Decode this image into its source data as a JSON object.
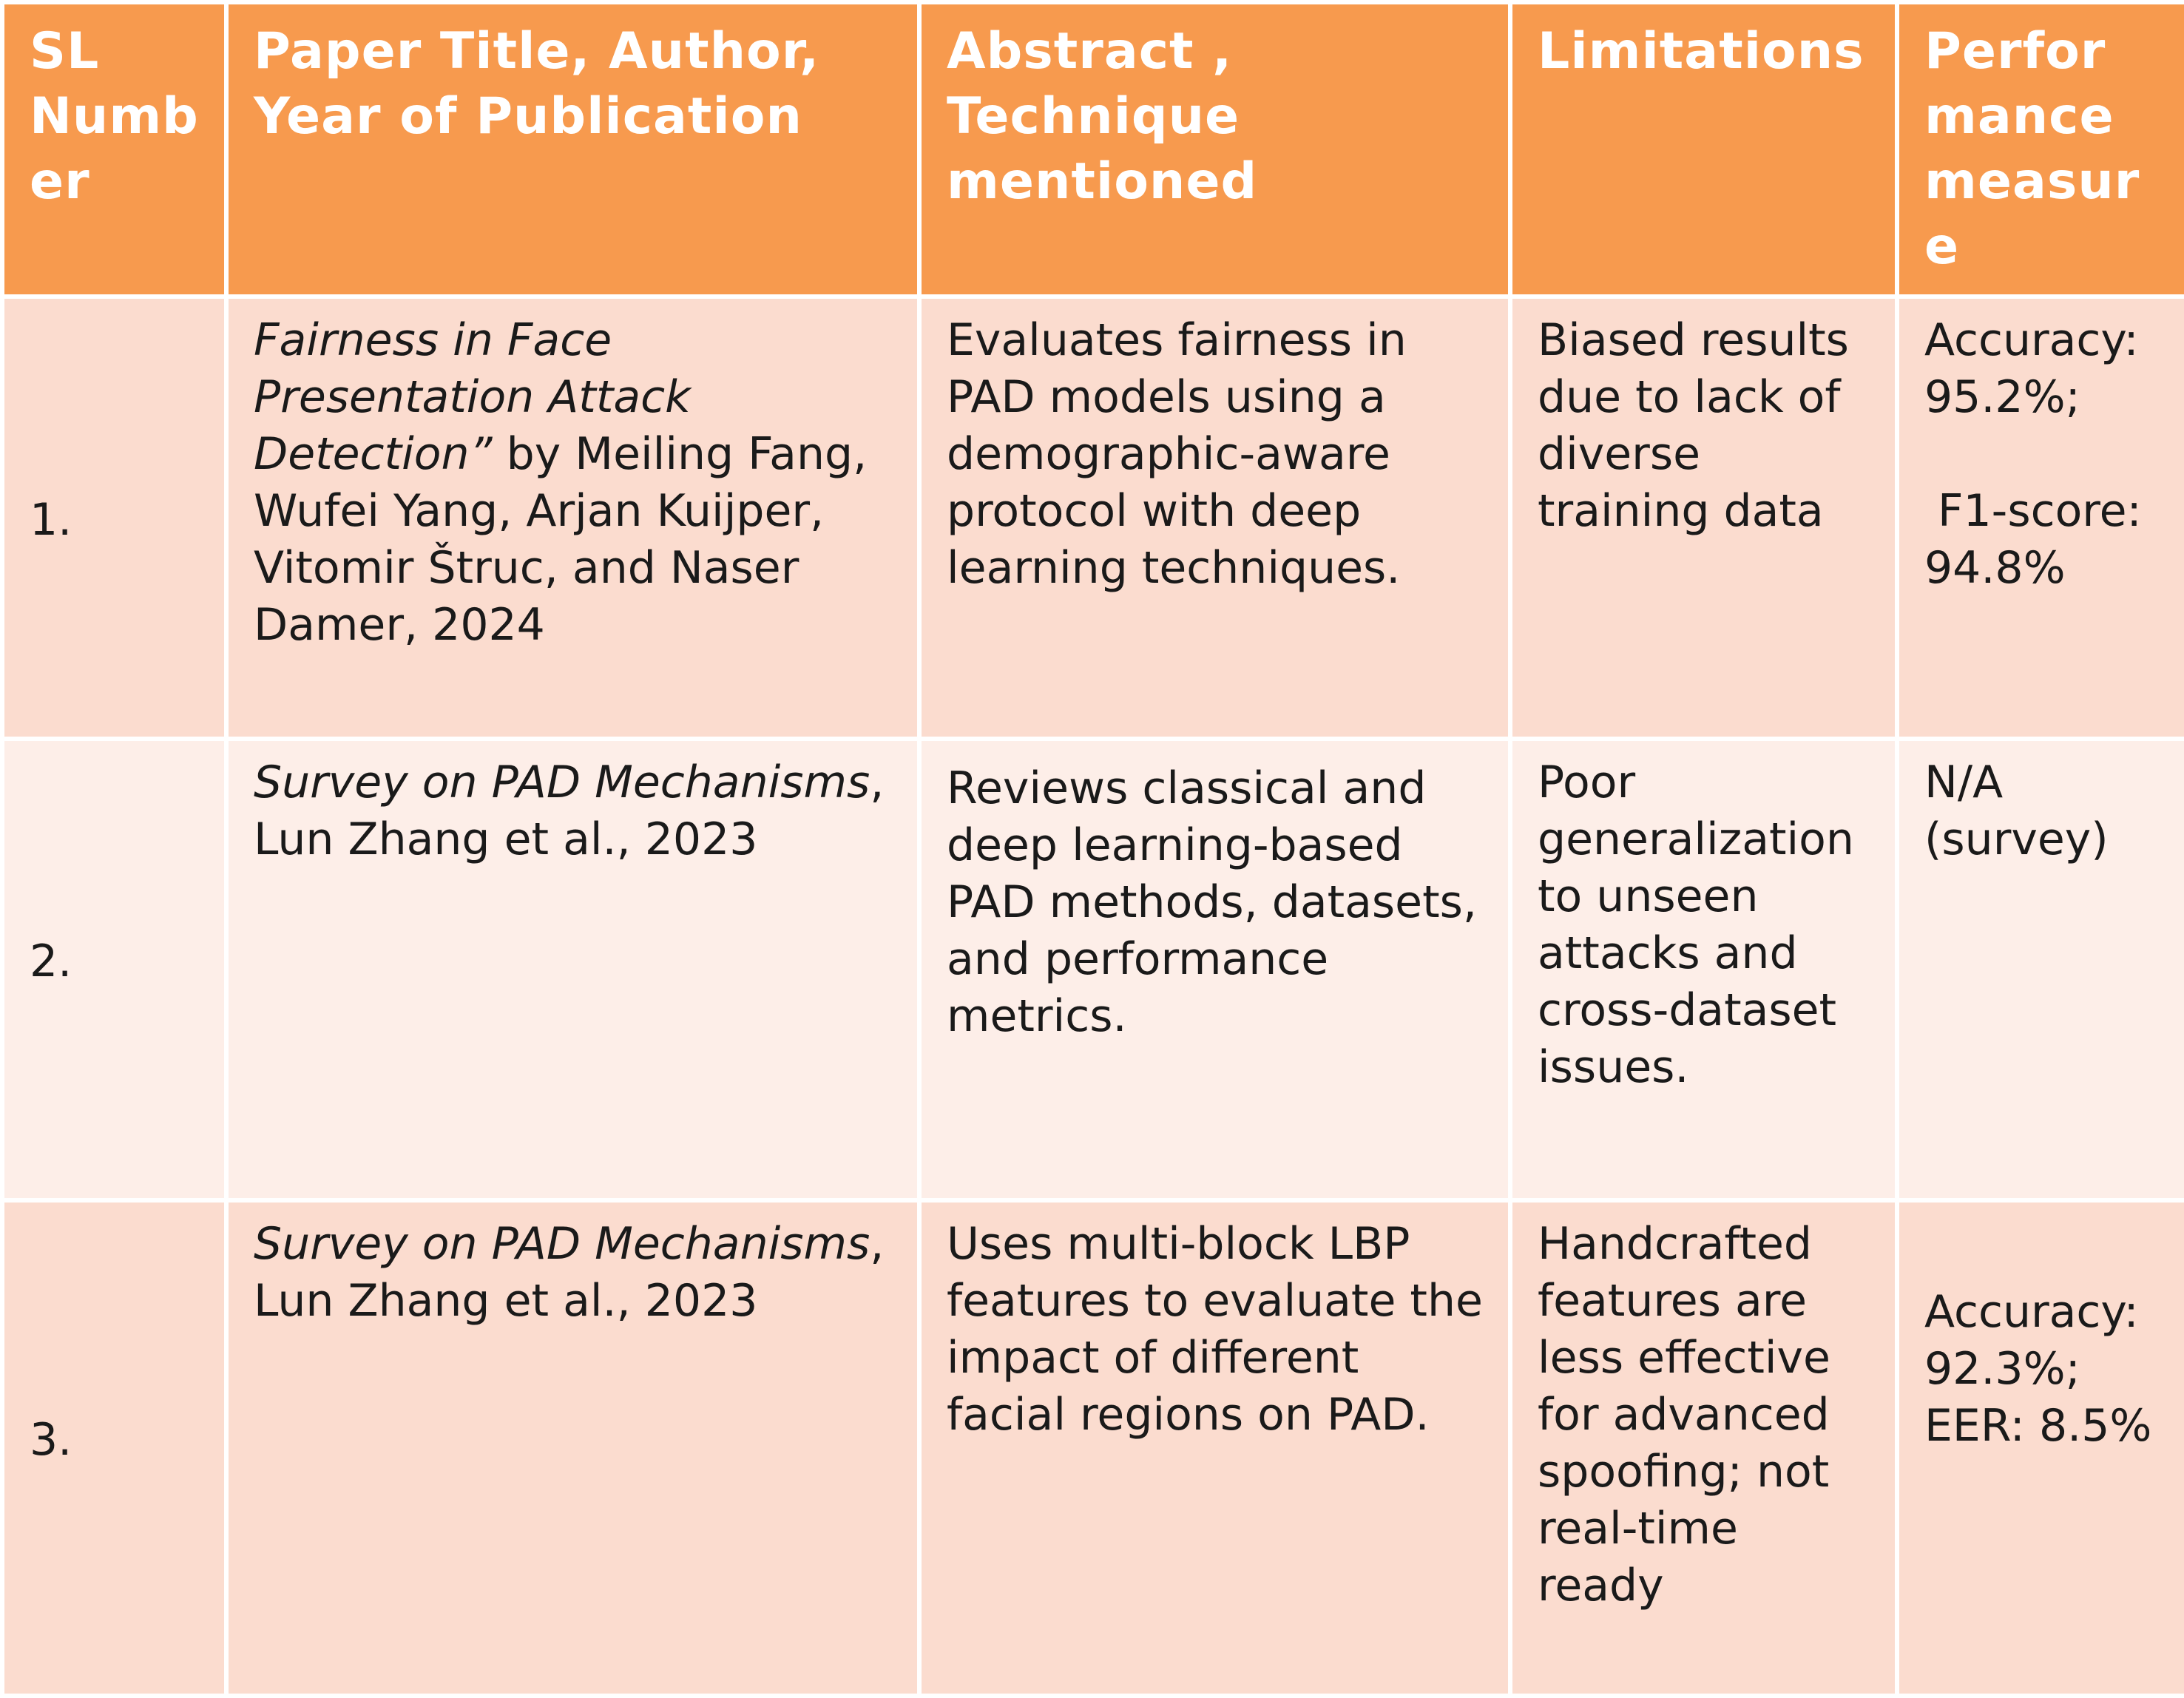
{
  "headers": {
    "sl": "SL Number",
    "paper": "Paper Title, Author, Year of Publication",
    "abstract": "Abstract , Technique mentioned",
    "limitations": "Limitations",
    "performance": "Performance measure"
  },
  "rows": [
    {
      "sl": "1.",
      "title": "Fairness in Face Presentation Attack Detection”",
      "authors": " by Meiling Fang, Wufei Yang, Arjan Kuijper, Vitomir Štruc, and Naser Damer, 2024",
      "abstract": "Evaluates fairness in PAD models using a demographic-aware protocol with deep learning techniques.",
      "limitations": "Biased results due to lack of diverse training data",
      "performance_1": "Accuracy: 95.2%;",
      "performance_2": "F1-score: 94.8%"
    },
    {
      "sl": "2.",
      "title": "Survey on PAD Mechanisms",
      "authors": ", Lun Zhang et al., 2023",
      "abstract": "Reviews classical and deep learning-based PAD methods, datasets, and performance metrics.",
      "limitations": "Poor generalization to unseen attacks and cross-dataset issues.",
      "performance_1": "N/A (survey)",
      "performance_2": ""
    },
    {
      "sl": "3.",
      "title": "Survey on PAD Mechanisms",
      "authors": ", Lun Zhang et al., 2023",
      "abstract": "Uses multi-block LBP features to evaluate the impact of different facial regions on PAD.",
      "limitations": "Handcrafted features are less effective for advanced spoofing; not real-time ready",
      "performance_1": "Accuracy: 92.3%;",
      "performance_2": "EER: 8.5%"
    }
  ],
  "colors": {
    "header_bg": "#f79a4e",
    "row_odd_bg": "#fbdccf",
    "row_even_bg": "#fdeee8"
  }
}
